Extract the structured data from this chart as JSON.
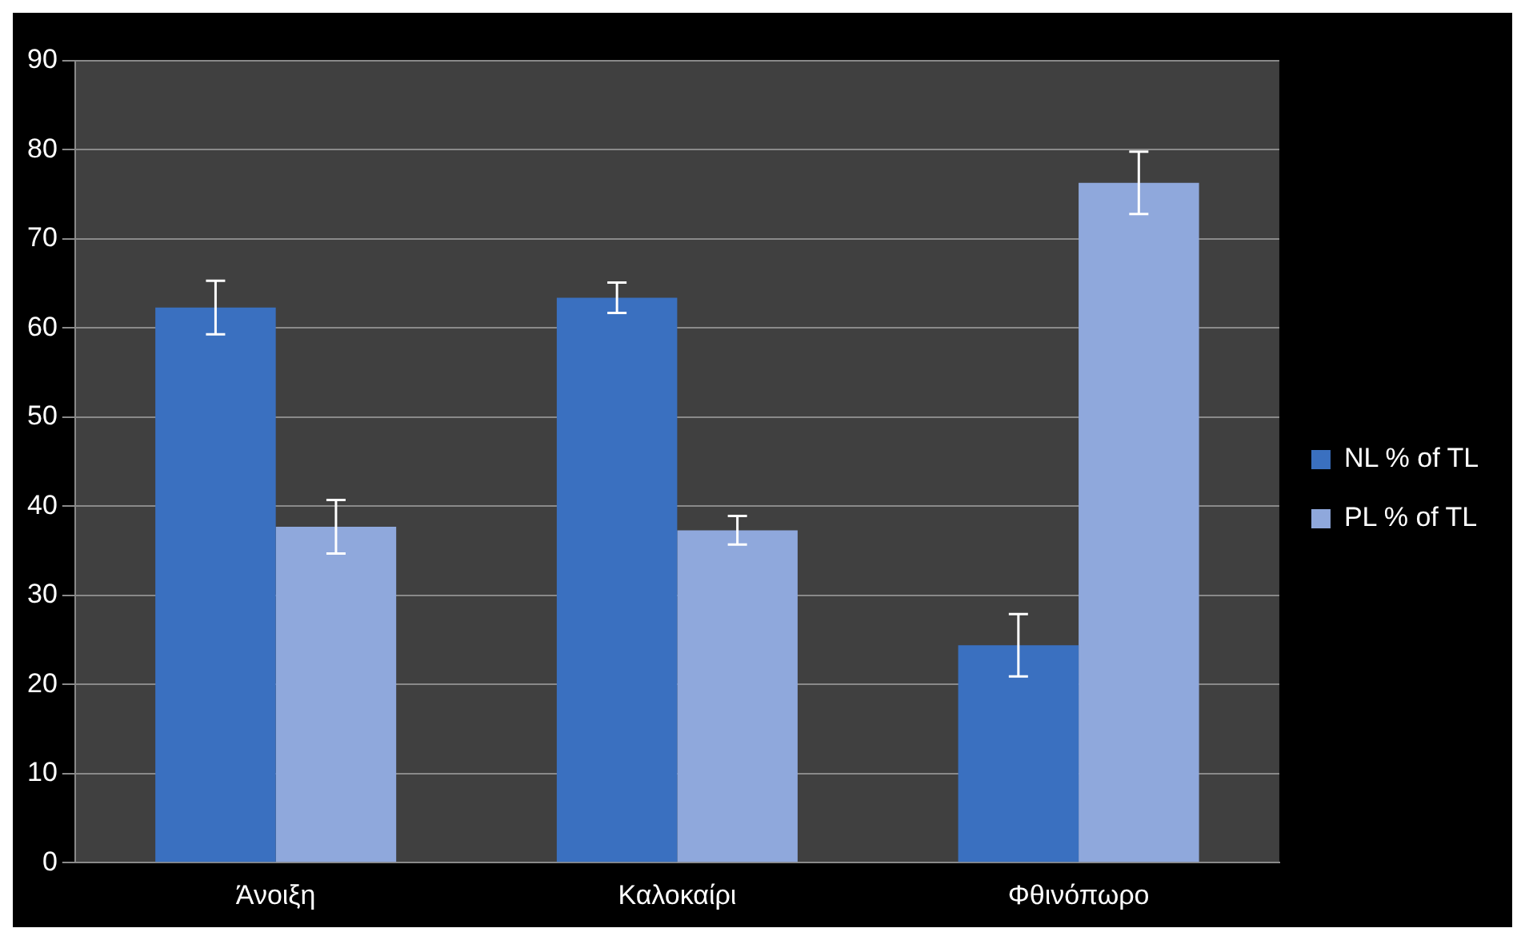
{
  "chart_data": {
    "type": "bar",
    "categories": [
      "Άνοιξη",
      "Καλοκαίρι",
      "Φθινόπωρο"
    ],
    "series": [
      {
        "name": "NL % of TL",
        "color": "#3a70c0",
        "values": [
          62.3,
          63.4,
          24.4
        ],
        "errors": [
          3,
          1.7,
          3.5
        ]
      },
      {
        "name": "PL % of TL",
        "color": "#8fa8dc",
        "values": [
          37.7,
          37.3,
          76.3
        ],
        "errors": [
          3,
          1.6,
          3.5
        ]
      }
    ],
    "ylim": [
      0,
      90
    ],
    "yticks": [
      0,
      10,
      20,
      30,
      40,
      50,
      60,
      70,
      80,
      90
    ],
    "grid": "y",
    "legend": "right"
  }
}
